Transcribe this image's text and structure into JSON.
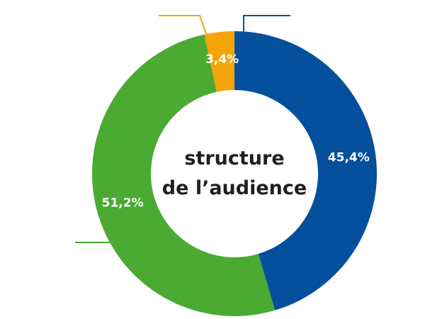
{
  "chart_data": {
    "type": "pie",
    "variant": "donut",
    "center_text": [
      "structure",
      "de l’audience"
    ],
    "slices": [
      {
        "label": "45,4%",
        "value": 45.4,
        "color": "#054f9c"
      },
      {
        "label": "51,2%",
        "value": 51.2,
        "color": "#4aaa32"
      },
      {
        "label": "3,4%",
        "value": 3.4,
        "color": "#f5a40a"
      }
    ],
    "start_angle_deg": 0,
    "direction": "clockwise"
  }
}
